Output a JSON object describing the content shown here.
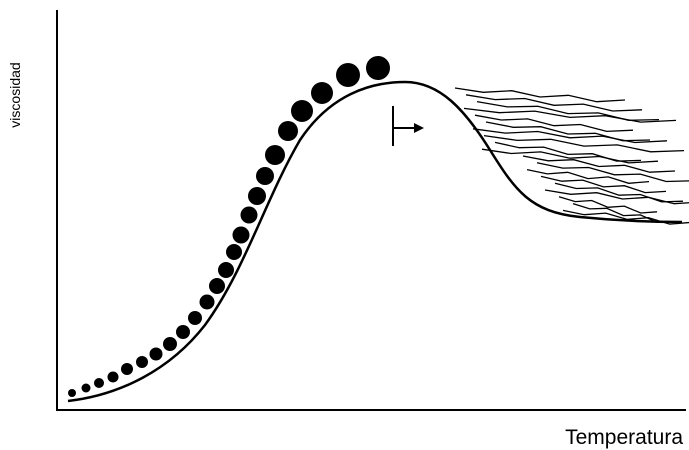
{
  "axes": {
    "y_label": "viscosidad",
    "x_label": "Temperatura"
  }
}
